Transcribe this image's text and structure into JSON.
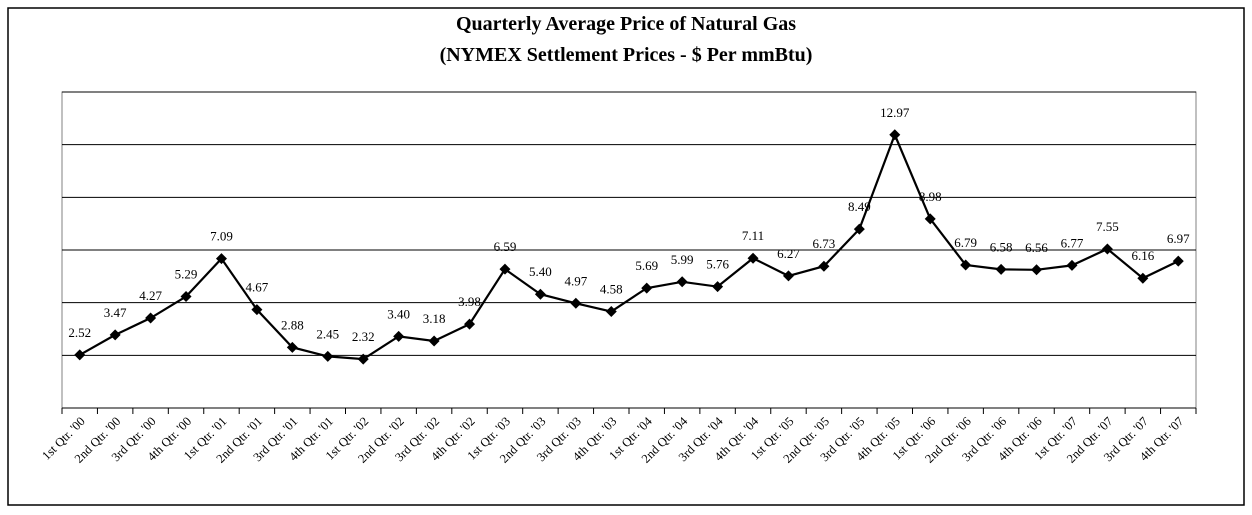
{
  "chart_data": {
    "type": "line",
    "title": "Quarterly Average Price of Natural Gas",
    "subtitle": "(NYMEX Settlement Prices - $ Per mmBtu)",
    "categories": [
      "1st Qtr. '00",
      "2nd Qtr. '00",
      "3rd Qtr. '00",
      "4th Qtr. '00",
      "1st Qtr. '01",
      "2nd Qtr. '01",
      "3rd Qtr. '01",
      "4th Qtr. '01",
      "1st Qtr. '02",
      "2nd Qtr. '02",
      "3rd Qtr. '02",
      "4th Qtr. '02",
      "1st Qtr. '03",
      "2nd Qtr. '03",
      "3rd Qtr. '03",
      "4th Qtr. '03",
      "1st Qtr. '04",
      "2nd Qtr. '04",
      "3rd Qtr. '04",
      "4th Qtr. '04",
      "1st Qtr. '05",
      "2nd Qtr. '05",
      "3rd Qtr. '05",
      "4th Qtr. '05",
      "1st Qtr. '06",
      "2nd Qtr. '06",
      "3rd Qtr. '06",
      "4th Qtr. '06",
      "1st Qtr. '07",
      "2nd Qtr. '07",
      "3rd Qtr. '07",
      "4th Qtr. '07"
    ],
    "values": [
      2.52,
      3.47,
      4.27,
      5.29,
      7.09,
      4.67,
      2.88,
      2.45,
      2.32,
      3.4,
      3.18,
      3.98,
      6.59,
      5.4,
      4.97,
      4.58,
      5.69,
      5.99,
      5.76,
      7.11,
      6.27,
      6.73,
      8.49,
      12.97,
      8.98,
      6.79,
      6.58,
      6.56,
      6.77,
      7.55,
      6.16,
      6.97
    ],
    "value_labels": [
      "2.52",
      "3.47",
      "4.27",
      "5.29",
      "7.09",
      "4.67",
      "2.88",
      "2.45",
      "2.32",
      "3.40",
      "3.18",
      "3.98",
      "6.59",
      "5.40",
      "4.97",
      "4.58",
      "5.69",
      "5.99",
      "5.76",
      "7.11",
      "6.27",
      "6.73",
      "8.49",
      "12.97",
      "8.98",
      "6.79",
      "6.58",
      "6.56",
      "6.77",
      "7.55",
      "6.16",
      "6.97"
    ],
    "color": "#000000",
    "ylim": [
      0,
      15
    ],
    "yticks": [
      0,
      2.5,
      5,
      7.5,
      10,
      12.5,
      15
    ],
    "grid": true
  }
}
